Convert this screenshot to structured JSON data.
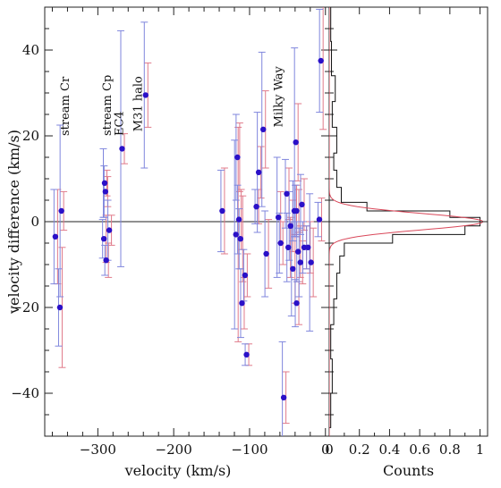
{
  "chart_data": [
    {
      "type": "scatter",
      "title": "",
      "xlabel": "velocity (km/s)",
      "ylabel": "velocity difference (km/s)",
      "xlim": [
        -370,
        5
      ],
      "ylim": [
        -50,
        50
      ],
      "x_ticks": [
        -300,
        -200,
        -100,
        0
      ],
      "x_tick_labels": [
        "−300",
        "−200",
        "−100",
        "0"
      ],
      "y_ticks": [
        -40,
        -20,
        0,
        20,
        40
      ],
      "y_tick_labels": [
        "−40",
        "−20",
        "0",
        "20",
        "40"
      ],
      "reference_line_y": 0,
      "grid": false,
      "colors": {
        "points": "#2a10c8",
        "err_blue": "#7f86dd",
        "err_red": "#e07a8a",
        "axes": "#222222"
      },
      "points": [
        {
          "x": -356,
          "y": -3.5,
          "eb": 11.0,
          "er": 11.0
        },
        {
          "x": -350,
          "y": -20.0,
          "eb": 9.0,
          "er": 14.0
        },
        {
          "x": -348,
          "y": 2.5,
          "eb": 20.0,
          "er": 4.5
        },
        {
          "x": -292,
          "y": -4.0,
          "eb": 4.5,
          "er": 5.5
        },
        {
          "x": -291,
          "y": 9.0,
          "eb": 8.0,
          "er": 3.0
        },
        {
          "x": -290,
          "y": 7.0,
          "eb": 6.0,
          "er": 3.5
        },
        {
          "x": -289,
          "y": -9.0,
          "eb": 3.5,
          "er": 4.0
        },
        {
          "x": -285,
          "y": -2.0,
          "eb": 7.0,
          "er": 3.5
        },
        {
          "x": -268,
          "y": 17.0,
          "eb": 27.5,
          "er": 3.5
        },
        {
          "x": -237,
          "y": 29.5,
          "eb": 17.0,
          "er": 7.5
        },
        {
          "x": -136,
          "y": 2.5,
          "eb": 9.5,
          "er": 10.0
        },
        {
          "x": -118,
          "y": -3.0,
          "eb": 22.0,
          "er": 25.0
        },
        {
          "x": -116,
          "y": 15.0,
          "eb": 10.0,
          "er": 8.0
        },
        {
          "x": -114,
          "y": 0.5,
          "eb": 8.0,
          "er": 7.0
        },
        {
          "x": -112,
          "y": -4.0,
          "eb": 7.0,
          "er": 10.0
        },
        {
          "x": -110,
          "y": -19.0,
          "eb": 8.0,
          "er": 6.0
        },
        {
          "x": -106,
          "y": -12.5,
          "eb": 6.0,
          "er": 5.0
        },
        {
          "x": -104,
          "y": -31.0,
          "eb": 2.5,
          "er": 2.5
        },
        {
          "x": -91,
          "y": 3.5,
          "eb": 4.0,
          "er": 4.0
        },
        {
          "x": -88,
          "y": 11.5,
          "eb": 14.0,
          "er": 6.0
        },
        {
          "x": -82,
          "y": 21.5,
          "eb": 18.0,
          "er": 9.0
        },
        {
          "x": -78,
          "y": -7.5,
          "eb": 10.0,
          "er": 8.0
        },
        {
          "x": -62,
          "y": 1.0,
          "eb": 14.0,
          "er": 6.0
        },
        {
          "x": -59,
          "y": -5.0,
          "eb": 7.0,
          "er": 5.0
        },
        {
          "x": -55,
          "y": -41.0,
          "eb": 13.0,
          "er": 6.0
        },
        {
          "x": -51,
          "y": 6.5,
          "eb": 8.0,
          "er": 6.0
        },
        {
          "x": -49,
          "y": -6.0,
          "eb": 8.0,
          "er": 7.0
        },
        {
          "x": -46,
          "y": -1.0,
          "eb": 8.0,
          "er": 6.0
        },
        {
          "x": -43,
          "y": -11.0,
          "eb": 11.0,
          "er": 8.0
        },
        {
          "x": -41,
          "y": 2.5,
          "eb": 7.0,
          "er": 6.0
        },
        {
          "x": -39,
          "y": 18.5,
          "eb": 22.0,
          "er": 9.0
        },
        {
          "x": -38,
          "y": 2.5,
          "eb": 6.0,
          "er": 5.0
        },
        {
          "x": -38,
          "y": -19.0,
          "eb": 5.5,
          "er": 5.0
        },
        {
          "x": -36,
          "y": -7.0,
          "eb": 7.0,
          "er": 6.0
        },
        {
          "x": -33,
          "y": -9.5,
          "eb": 8.0,
          "er": 5.0
        },
        {
          "x": -31,
          "y": 4.0,
          "eb": 7.0,
          "er": 6.0
        },
        {
          "x": -28,
          "y": -6.0,
          "eb": 6.0,
          "er": 5.0
        },
        {
          "x": -23,
          "y": -6.0,
          "eb": 5.0,
          "er": 6.0
        },
        {
          "x": -19,
          "y": -9.5,
          "eb": 16.0,
          "er": 8.0
        },
        {
          "x": -8,
          "y": 0.5,
          "eb": 4.0,
          "er": 5.0
        },
        {
          "x": -6,
          "y": 37.5,
          "eb": 12.0,
          "er": 16.0
        }
      ],
      "annotations": [
        {
          "text": "stream Cr",
          "x": -338,
          "y": 20
        },
        {
          "text": "stream Cp",
          "x": -283,
          "y": 20
        },
        {
          "text": "EC4",
          "x": -267,
          "y": 20
        },
        {
          "text": "M31 halo",
          "x": -242,
          "y": 21
        },
        {
          "text": "Milky Way",
          "x": -57,
          "y": 22
        }
      ]
    },
    {
      "type": "histogram",
      "title": "",
      "xlabel": "Counts",
      "ylabel": "",
      "xlim": [
        0,
        1.05
      ],
      "ylim": [
        -50,
        50
      ],
      "x_ticks": [
        0,
        0.2,
        0.4,
        0.6,
        0.8,
        1
      ],
      "x_tick_labels": [
        "0",
        "0.2",
        "0.4",
        "0.6",
        "0.8",
        "1"
      ],
      "shared_y_with_left_panel": true,
      "step_bins": [
        {
          "y0": -48,
          "y1": -40,
          "count": 0.01
        },
        {
          "y0": -40,
          "y1": -32,
          "count": 0.02
        },
        {
          "y0": -32,
          "y1": -24,
          "count": 0.01
        },
        {
          "y0": -24,
          "y1": -18,
          "count": 0.03
        },
        {
          "y0": -18,
          "y1": -12,
          "count": 0.05
        },
        {
          "y0": -12,
          "y1": -8,
          "count": 0.07
        },
        {
          "y0": -8,
          "y1": -5,
          "count": 0.1
        },
        {
          "y0": -5,
          "y1": -3,
          "count": 0.42
        },
        {
          "y0": -3,
          "y1": -1,
          "count": 0.9
        },
        {
          "y0": -1,
          "y1": 1,
          "count": 1.0
        },
        {
          "y0": 1,
          "y1": 2.5,
          "count": 0.8
        },
        {
          "y0": 2.5,
          "y1": 4.5,
          "count": 0.25
        },
        {
          "y0": 4.5,
          "y1": 8,
          "count": 0.08
        },
        {
          "y0": 8,
          "y1": 12,
          "count": 0.05
        },
        {
          "y0": 12,
          "y1": 16,
          "count": 0.03
        },
        {
          "y0": 16,
          "y1": 22,
          "count": 0.05
        },
        {
          "y0": 22,
          "y1": 28,
          "count": 0.02
        },
        {
          "y0": 28,
          "y1": 34,
          "count": 0.04
        },
        {
          "y0": 34,
          "y1": 42,
          "count": 0.015
        },
        {
          "y0": 42,
          "y1": 50,
          "count": 0.01
        }
      ],
      "fit_curve": {
        "type": "gaussian",
        "mu": 0,
        "sigma": 1.9,
        "amplitude": 1.02,
        "color": "#d9485a"
      }
    }
  ]
}
